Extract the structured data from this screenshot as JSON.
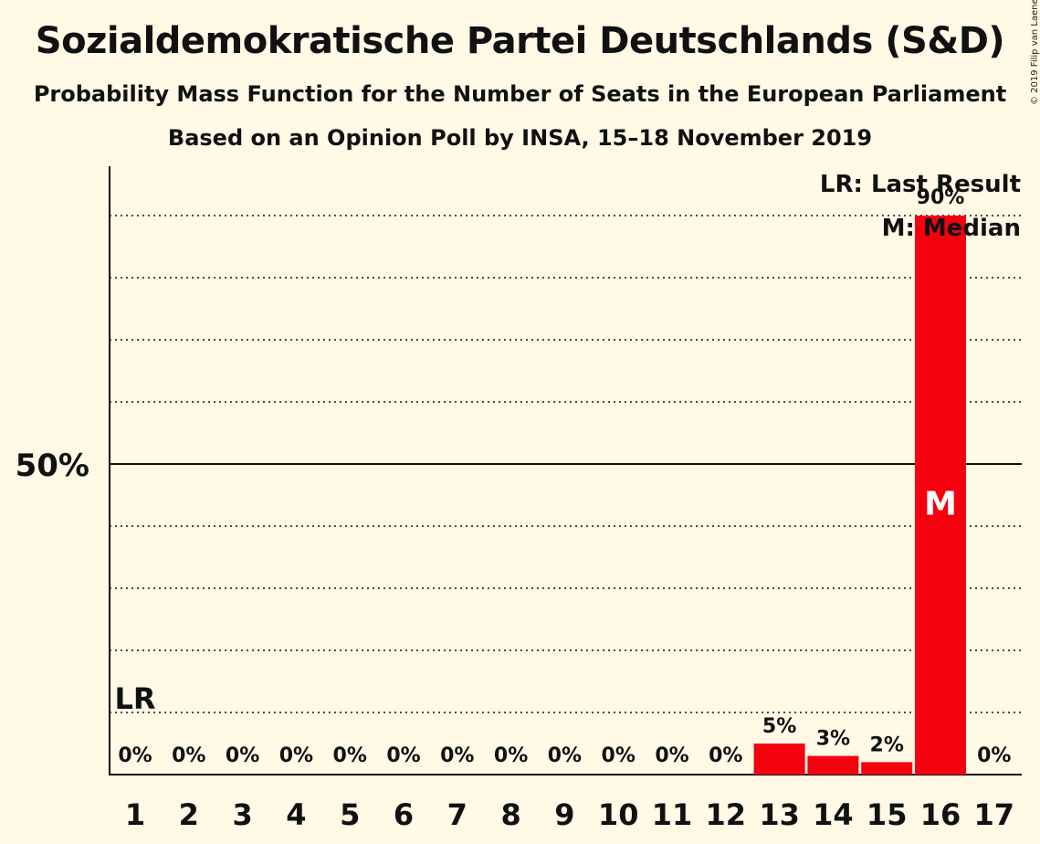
{
  "title": "Sozialdemokratische Partei Deutschlands (S&D)",
  "subtitle1": "Probability Mass Function for the Number of Seats in the European Parliament",
  "subtitle2": "Based on an Opinion Poll by INSA, 15–18 November 2019",
  "copyright": "© 2019 Filip van Laenen",
  "colors": {
    "bar": "#F5000E",
    "background": "#FFF9E6",
    "text": "#111111"
  },
  "chart_data": {
    "type": "bar",
    "categories": [
      "1",
      "2",
      "3",
      "4",
      "5",
      "6",
      "7",
      "8",
      "9",
      "10",
      "11",
      "12",
      "13",
      "14",
      "15",
      "16",
      "17"
    ],
    "values": [
      0,
      0,
      0,
      0,
      0,
      0,
      0,
      0,
      0,
      0,
      0,
      0,
      5,
      3,
      2,
      90,
      0
    ],
    "value_labels": [
      "0%",
      "0%",
      "0%",
      "0%",
      "0%",
      "0%",
      "0%",
      "0%",
      "0%",
      "0%",
      "0%",
      "0%",
      "5%",
      "3%",
      "2%",
      "90%",
      "0%"
    ],
    "ylim": [
      0,
      98
    ],
    "ytick_label": {
      "value": 50,
      "text": "50%"
    },
    "gridlines": [
      10,
      20,
      30,
      40,
      60,
      70,
      80,
      90
    ],
    "last_result": {
      "category": "1",
      "label": "LR"
    },
    "median": {
      "category": "16",
      "label": "M"
    },
    "legend": {
      "placement": "top-right",
      "entries": [
        "LR: Last Result",
        "M: Median"
      ]
    }
  }
}
